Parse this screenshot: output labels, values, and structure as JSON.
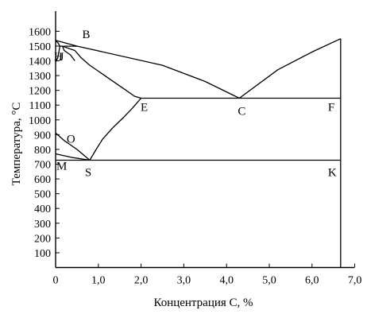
{
  "chart_data": {
    "type": "line",
    "title": "",
    "xlabel": "Концентрация С, %",
    "ylabel": "Температура, °С",
    "xlim": [
      0,
      7
    ],
    "ylim": [
      0,
      1650
    ],
    "x_ticks": [
      {
        "value": 0,
        "label": "0"
      },
      {
        "value": 1,
        "label": "1,0"
      },
      {
        "value": 2,
        "label": "2,0"
      },
      {
        "value": 3,
        "label": "3,0"
      },
      {
        "value": 4,
        "label": "4,0"
      },
      {
        "value": 5,
        "label": "5,0"
      },
      {
        "value": 6,
        "label": "6,0"
      },
      {
        "value": 7,
        "label": "7,0"
      }
    ],
    "y_ticks": [
      {
        "value": 100,
        "label": "100"
      },
      {
        "value": 200,
        "label": "200"
      },
      {
        "value": 300,
        "label": "300"
      },
      {
        "value": 400,
        "label": "400"
      },
      {
        "value": 500,
        "label": "500"
      },
      {
        "value": 600,
        "label": "600"
      },
      {
        "value": 700,
        "label": "700"
      },
      {
        "value": 800,
        "label": "800"
      },
      {
        "value": 900,
        "label": "900"
      },
      {
        "value": 1000,
        "label": "1000"
      },
      {
        "value": 1100,
        "label": "1100"
      },
      {
        "value": 1200,
        "label": "1200"
      },
      {
        "value": 1300,
        "label": "1300"
      },
      {
        "value": 1400,
        "label": "1400"
      },
      {
        "value": 1500,
        "label": "1500"
      },
      {
        "value": 1600,
        "label": "1600"
      }
    ],
    "grid": false,
    "legend": "none",
    "line_color": "#000000",
    "series": [
      {
        "points": [
          [
            0,
            1539
          ],
          [
            0.51,
            1499
          ]
        ]
      },
      {
        "points": [
          [
            0.51,
            1499
          ],
          [
            2.5,
            1370
          ],
          [
            3.5,
            1260
          ],
          [
            4.3,
            1147
          ]
        ]
      },
      {
        "points": [
          [
            4.3,
            1147
          ],
          [
            5.2,
            1340
          ],
          [
            6.0,
            1460
          ],
          [
            6.67,
            1550
          ]
        ]
      },
      {
        "points": [
          [
            0,
            1539
          ],
          [
            0.06,
            1520
          ],
          [
            0.1,
            1499
          ]
        ]
      },
      {
        "points": [
          [
            0,
            1392
          ],
          [
            0.05,
            1420
          ],
          [
            0.1,
            1499
          ]
        ]
      },
      {
        "points": [
          [
            0.1,
            1499
          ],
          [
            0.51,
            1499
          ]
        ]
      },
      {
        "points": [
          [
            0.16,
            1499
          ],
          [
            0.3,
            1485
          ],
          [
            0.45,
            1470
          ],
          [
            0.6,
            1420
          ],
          [
            0.8,
            1370
          ],
          [
            1.0,
            1330
          ],
          [
            1.3,
            1270
          ],
          [
            1.6,
            1210
          ],
          [
            1.85,
            1160
          ],
          [
            2.0,
            1147
          ]
        ]
      },
      {
        "points": [
          [
            0.16,
            1499
          ],
          [
            0.2,
            1470
          ],
          [
            0.35,
            1440
          ],
          [
            0.45,
            1400
          ]
        ]
      },
      {
        "points": [
          [
            2.0,
            1147
          ],
          [
            6.67,
            1147
          ]
        ]
      },
      {
        "points": [
          [
            2.0,
            1147
          ],
          [
            1.8,
            1080
          ],
          [
            1.6,
            1020
          ],
          [
            1.35,
            950
          ],
          [
            1.1,
            870
          ],
          [
            0.95,
            800
          ],
          [
            0.8,
            727
          ]
        ]
      },
      {
        "points": [
          [
            0,
            911
          ],
          [
            0.2,
            860
          ],
          [
            0.5,
            800
          ],
          [
            0.8,
            727
          ]
        ]
      },
      {
        "points": [
          [
            0,
            770
          ],
          [
            0.4,
            745
          ],
          [
            0.8,
            727
          ]
        ]
      },
      {
        "points": [
          [
            0,
            727
          ],
          [
            6.67,
            727
          ]
        ]
      },
      {
        "points": [
          [
            6.67,
            1550
          ],
          [
            6.67,
            0
          ]
        ]
      }
    ],
    "point_labels": [
      {
        "label": "A",
        "x": 0,
        "y": 1539,
        "shown": false
      },
      {
        "label": "B",
        "x": 0.51,
        "y": 1499,
        "text": "B"
      },
      {
        "label": "J",
        "x": 0.16,
        "y": 1499,
        "text": "J"
      },
      {
        "label": "H",
        "x": 0.1,
        "y": 1499,
        "text": "H"
      },
      {
        "label": "C",
        "x": 4.3,
        "y": 1147,
        "text": "C"
      },
      {
        "label": "E",
        "x": 2.0,
        "y": 1147,
        "text": "E"
      },
      {
        "label": "F",
        "x": 6.67,
        "y": 1147,
        "text": "F"
      },
      {
        "label": "O",
        "x": 0.5,
        "y": 770,
        "text": "O"
      },
      {
        "label": "M",
        "x": 0,
        "y": 770,
        "text": "M"
      },
      {
        "label": "S",
        "x": 0.8,
        "y": 727,
        "text": "S"
      },
      {
        "label": "K",
        "x": 6.67,
        "y": 727,
        "text": "K"
      }
    ]
  }
}
